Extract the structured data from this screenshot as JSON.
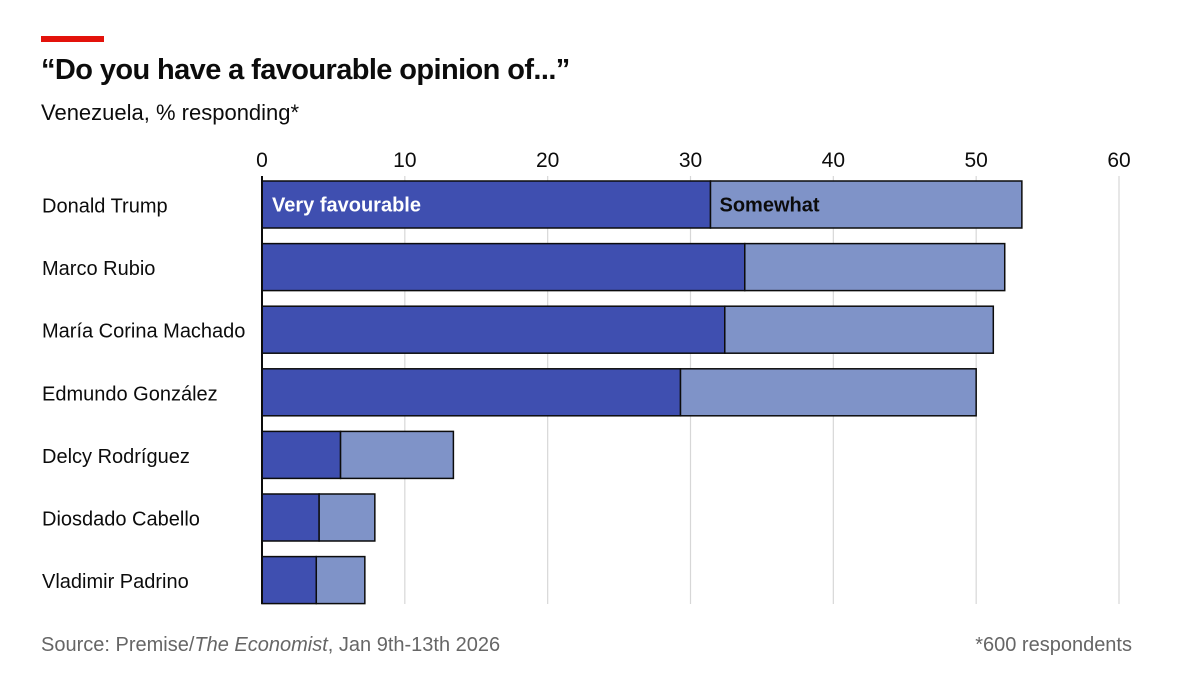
{
  "title": "“Do you have a favourable opinion of...”",
  "subtitle": "Venezuela, % responding*",
  "source": {
    "prefix": "Source: Premise/",
    "publication": "The Economist",
    "suffix": ", Jan 9th-13th 2026"
  },
  "footnote": "*600 respondents",
  "colors": {
    "accent": "#e3120b",
    "very_favourable": "#3f4fb0",
    "somewhat": "#7f93c8",
    "grid": "#d7d7d7",
    "axis": "#0c0c0c"
  },
  "chart_data": {
    "type": "bar",
    "orientation": "horizontal",
    "stacked": true,
    "categories": [
      "Donald Trump",
      "Marco Rubio",
      "María Corina Machado",
      "Edmundo González",
      "Delcy Rodríguez",
      "Diosdado Cabello",
      "Vladimir Padrino"
    ],
    "series": [
      {
        "name": "Very favourable",
        "values": [
          31.4,
          33.8,
          32.4,
          29.3,
          5.5,
          4.0,
          3.8
        ]
      },
      {
        "name": "Somewhat",
        "values": [
          21.8,
          18.2,
          18.8,
          20.7,
          7.9,
          3.9,
          3.4
        ]
      }
    ],
    "xlim": [
      0,
      60
    ],
    "xticks": [
      "0",
      "10",
      "20",
      "30",
      "40",
      "50",
      "60"
    ],
    "xtick_values": [
      0,
      10,
      20,
      30,
      40,
      50,
      60
    ],
    "x_axis_position": "top",
    "grid": true,
    "legend": "labels inside first bar"
  }
}
